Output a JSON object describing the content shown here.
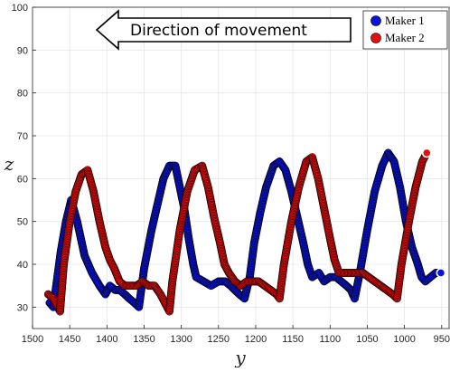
{
  "chart_data": {
    "type": "scatter",
    "xlabel": "y",
    "ylabel": "z",
    "xlim": [
      1500,
      940
    ],
    "ylim": [
      25,
      100
    ],
    "x_reversed": true,
    "x_ticks": [
      1500,
      1450,
      1400,
      1350,
      1300,
      1250,
      1200,
      1150,
      1100,
      1050,
      1000,
      950
    ],
    "y_ticks": [
      30,
      40,
      50,
      60,
      70,
      80,
      90,
      100
    ],
    "grid": true,
    "legend_position": "top-right",
    "annotation": "Direction of movement",
    "series": [
      {
        "name": "Maker 1",
        "color": "#0a14d9",
        "points": [
          [
            1477,
            31
          ],
          [
            1472,
            30
          ],
          [
            1462,
            43
          ],
          [
            1455,
            50
          ],
          [
            1448,
            55
          ],
          [
            1440,
            50
          ],
          [
            1430,
            42
          ],
          [
            1420,
            38
          ],
          [
            1410,
            35
          ],
          [
            1402,
            33
          ],
          [
            1396,
            35
          ],
          [
            1389,
            34
          ],
          [
            1383,
            34
          ],
          [
            1376,
            33
          ],
          [
            1370,
            32
          ],
          [
            1363,
            31
          ],
          [
            1357,
            30
          ],
          [
            1350,
            39
          ],
          [
            1340,
            48
          ],
          [
            1332,
            54
          ],
          [
            1324,
            60
          ],
          [
            1316,
            63
          ],
          [
            1308,
            63
          ],
          [
            1302,
            58
          ],
          [
            1296,
            53
          ],
          [
            1290,
            46
          ],
          [
            1284,
            40
          ],
          [
            1280,
            37
          ],
          [
            1270,
            36
          ],
          [
            1260,
            35
          ],
          [
            1250,
            36
          ],
          [
            1241,
            36
          ],
          [
            1234,
            35
          ],
          [
            1228,
            34
          ],
          [
            1222,
            33
          ],
          [
            1215,
            32
          ],
          [
            1208,
            37
          ],
          [
            1202,
            45
          ],
          [
            1194,
            52
          ],
          [
            1186,
            58
          ],
          [
            1176,
            63
          ],
          [
            1168,
            64
          ],
          [
            1160,
            62
          ],
          [
            1152,
            57
          ],
          [
            1144,
            51
          ],
          [
            1136,
            45
          ],
          [
            1130,
            40
          ],
          [
            1124,
            37
          ],
          [
            1115,
            38
          ],
          [
            1108,
            36
          ],
          [
            1100,
            37
          ],
          [
            1092,
            37
          ],
          [
            1085,
            36
          ],
          [
            1078,
            35
          ],
          [
            1072,
            34
          ],
          [
            1067,
            32
          ],
          [
            1060,
            38
          ],
          [
            1050,
            48
          ],
          [
            1040,
            57
          ],
          [
            1030,
            63
          ],
          [
            1022,
            66
          ],
          [
            1014,
            64
          ],
          [
            1006,
            58
          ],
          [
            998,
            50
          ],
          [
            990,
            44
          ],
          [
            982,
            40
          ],
          [
            977,
            37
          ],
          [
            972,
            36
          ],
          [
            965,
            37
          ],
          [
            958,
            38
          ],
          [
            951,
            38
          ]
        ]
      },
      {
        "name": "Maker 2",
        "color": "#e60d0d",
        "points": [
          [
            1479,
            33
          ],
          [
            1472,
            32
          ],
          [
            1466,
            30
          ],
          [
            1463,
            29
          ],
          [
            1458,
            40
          ],
          [
            1450,
            50
          ],
          [
            1442,
            57
          ],
          [
            1434,
            61
          ],
          [
            1426,
            62
          ],
          [
            1418,
            57
          ],
          [
            1410,
            50
          ],
          [
            1402,
            44
          ],
          [
            1396,
            41
          ],
          [
            1390,
            39
          ],
          [
            1383,
            36
          ],
          [
            1376,
            35
          ],
          [
            1368,
            35
          ],
          [
            1360,
            35
          ],
          [
            1352,
            36
          ],
          [
            1344,
            35
          ],
          [
            1336,
            35
          ],
          [
            1328,
            33
          ],
          [
            1322,
            31
          ],
          [
            1316,
            29
          ],
          [
            1312,
            36
          ],
          [
            1302,
            48
          ],
          [
            1292,
            57
          ],
          [
            1282,
            62
          ],
          [
            1272,
            63
          ],
          [
            1264,
            58
          ],
          [
            1256,
            51
          ],
          [
            1248,
            45
          ],
          [
            1242,
            40
          ],
          [
            1236,
            38
          ],
          [
            1228,
            36
          ],
          [
            1220,
            35
          ],
          [
            1212,
            36
          ],
          [
            1204,
            36
          ],
          [
            1196,
            36
          ],
          [
            1188,
            35
          ],
          [
            1180,
            34
          ],
          [
            1172,
            33
          ],
          [
            1168,
            32
          ],
          [
            1162,
            40
          ],
          [
            1152,
            50
          ],
          [
            1142,
            58
          ],
          [
            1132,
            64
          ],
          [
            1124,
            65
          ],
          [
            1116,
            60
          ],
          [
            1108,
            53
          ],
          [
            1100,
            46
          ],
          [
            1094,
            41
          ],
          [
            1088,
            38
          ],
          [
            1080,
            38
          ],
          [
            1072,
            38
          ],
          [
            1064,
            38
          ],
          [
            1056,
            38
          ],
          [
            1048,
            37
          ],
          [
            1040,
            36
          ],
          [
            1032,
            35
          ],
          [
            1024,
            34
          ],
          [
            1016,
            33
          ],
          [
            1010,
            32
          ],
          [
            1004,
            40
          ],
          [
            994,
            50
          ],
          [
            985,
            58
          ],
          [
            976,
            64
          ],
          [
            970,
            66
          ]
        ]
      }
    ]
  }
}
